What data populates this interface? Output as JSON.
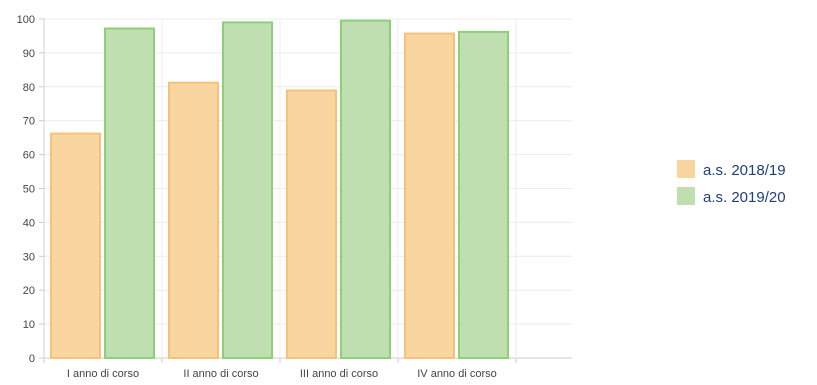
{
  "chart_data": {
    "type": "bar",
    "title": "",
    "xlabel": "",
    "ylabel": "",
    "categories": [
      "I anno di corso",
      "II anno di corso",
      "III anno di corso",
      "IV anno di corso"
    ],
    "series": [
      {
        "name": "a.s. 2018/19",
        "values": [
          66.5,
          81.5,
          79.2,
          96.0
        ],
        "fill": "#f9d6a0",
        "stroke": "#f5c27a"
      },
      {
        "name": "a.s. 2019/20",
        "values": [
          97.5,
          99.3,
          99.8,
          96.5
        ],
        "fill": "#bfdfb0",
        "stroke": "#8fcf7a"
      }
    ],
    "ylim": [
      0,
      100
    ],
    "yticks": [
      0,
      10,
      20,
      30,
      40,
      50,
      60,
      70,
      80,
      90,
      100
    ],
    "grid": true,
    "legend_position": "right"
  }
}
